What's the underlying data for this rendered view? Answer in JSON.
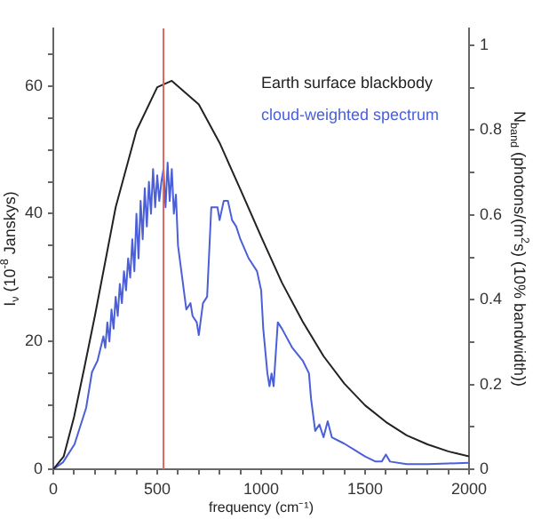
{
  "chart_data": {
    "type": "line",
    "xlabel": "frequency (cm⁻¹)",
    "ylabel": "I$_{ν}$ (10$^{-8}$ Janskys)",
    "y2label": "N$_{band}$ (photons/(m$^{2}$s) (10% bandwidth))",
    "xlim": [
      0,
      2000
    ],
    "xticks": [
      0,
      {
        "value": 100,
        "label": null
      },
      {
        "value": 200,
        "label": null
      },
      {
        "value": 300,
        "label": null
      },
      {
        "value": 400,
        "label": null
      },
      500,
      {
        "value": 600,
        "label": null
      },
      {
        "value": 700,
        "label": null
      },
      {
        "value": 800,
        "label": null
      },
      {
        "value": 900,
        "label": null
      },
      1000,
      {
        "value": 1100,
        "label": null
      },
      {
        "value": 1200,
        "label": null
      },
      {
        "value": 1300,
        "label": null
      },
      {
        "value": 1400,
        "label": null
      },
      1500,
      {
        "value": 1600,
        "label": null
      },
      {
        "value": 1700,
        "label": null
      },
      {
        "value": 1800,
        "label": null
      },
      {
        "value": 1900,
        "label": null
      },
      2000
    ],
    "ylim": [
      0,
      69
    ],
    "yticks": [
      0,
      {
        "value": 5,
        "label": null
      },
      {
        "value": 10,
        "label": null
      },
      {
        "value": 15,
        "label": null
      },
      20,
      {
        "value": 25,
        "label": null
      },
      {
        "value": 30,
        "label": null
      },
      {
        "value": 35,
        "label": null
      },
      40,
      {
        "value": 45,
        "label": null
      },
      {
        "value": 50,
        "label": null
      },
      {
        "value": 55,
        "label": null
      },
      60,
      {
        "value": 65,
        "label": null
      }
    ],
    "y2lim": [
      0,
      1.04
    ],
    "y2ticks": [
      0,
      {
        "value": 0.1,
        "label": null
      },
      0.2,
      {
        "value": 0.3,
        "label": null
      },
      0.4,
      {
        "value": 0.5,
        "label": null
      },
      0.6,
      {
        "value": 0.7,
        "label": null
      },
      0.8,
      {
        "value": 0.9,
        "label": null
      },
      1
    ],
    "grid": false,
    "legend": "top right",
    "marker": "none",
    "line_style": "solid",
    "ref_lines": [
      {
        "axis": "x",
        "value": 530,
        "color": "#e06666"
      }
    ],
    "series": [
      {
        "name": "Earth surface blackbody",
        "color": "#222222",
        "x": [
          0,
          50,
          100,
          150,
          200,
          300,
          400,
          500,
          570,
          700,
          800,
          900,
          1000,
          1100,
          1200,
          1300,
          1400,
          1500,
          1600,
          1700,
          1800,
          1900,
          2000
        ],
        "values": [
          0,
          2,
          8.2,
          16,
          24,
          41,
          53,
          59.8,
          60.8,
          57.1,
          51.1,
          43.8,
          36.4,
          29.2,
          23.1,
          17.7,
          13.4,
          10,
          7.4,
          5.3,
          3.9,
          2.8,
          2
        ]
      },
      {
        "name": "cloud-weighted spectrum",
        "color": "#4a5fd8",
        "x": [
          0,
          47,
          102,
          158,
          186,
          213,
          241,
          250,
          260,
          270,
          280,
          290,
          300,
          310,
          320,
          330,
          340,
          350,
          360,
          370,
          380,
          390,
          400,
          410,
          420,
          430,
          440,
          450,
          460,
          470,
          480,
          490,
          500,
          510,
          520,
          530,
          540,
          550,
          560,
          570,
          580,
          590,
          600,
          620,
          640,
          660,
          670,
          690,
          700,
          720,
          740,
          760,
          790,
          800,
          820,
          840,
          860,
          880,
          900,
          940,
          980,
          1000,
          1010,
          1030,
          1040,
          1050,
          1060,
          1080,
          1100,
          1150,
          1200,
          1230,
          1240,
          1260,
          1280,
          1300,
          1320,
          1340,
          1400,
          1450,
          1500,
          1550,
          1580,
          1600,
          1620,
          1700,
          1800,
          1900,
          2000
        ],
        "values": [
          0,
          1.1,
          3.9,
          9.6,
          15.2,
          17,
          20.8,
          19,
          23,
          20,
          25,
          22,
          27,
          24,
          29,
          26,
          31,
          28,
          33,
          30,
          36,
          31,
          40,
          33,
          42,
          36,
          44,
          38,
          45,
          40,
          47,
          41,
          46,
          42,
          45,
          47,
          41,
          48,
          42,
          47,
          40,
          43,
          35,
          30,
          25,
          26,
          24,
          23,
          21,
          26,
          27,
          41,
          41,
          39,
          42,
          42,
          39,
          38,
          36,
          33,
          31,
          28,
          22,
          15,
          13,
          15,
          13,
          23,
          22,
          19,
          17,
          15,
          11,
          6,
          7,
          5,
          7.5,
          5,
          4,
          3,
          2,
          1.2,
          1.2,
          2.3,
          1.2,
          0.8,
          0.8,
          0.9,
          1
        ]
      }
    ]
  }
}
